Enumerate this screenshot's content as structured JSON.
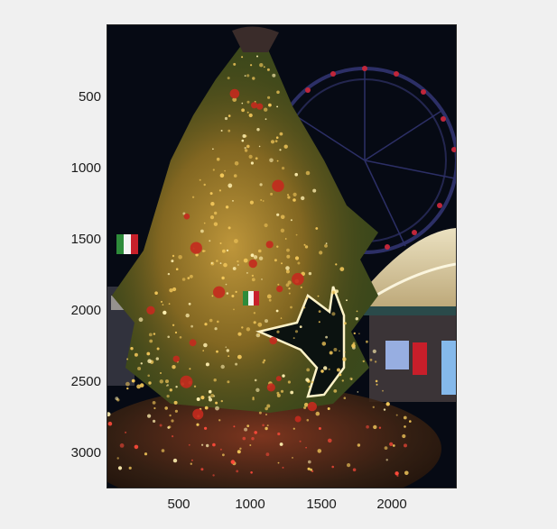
{
  "figure": {
    "image_subject": "christmas-tree-at-night-with-ferris-wheel",
    "y_ticks": [
      "500",
      "1000",
      "1500",
      "2000",
      "2500",
      "3000"
    ],
    "x_ticks": [
      "500",
      "1000",
      "1500",
      "2000"
    ],
    "colors": {
      "background": "#f0f0f0",
      "night_sky": "#060a14",
      "tree_green": "#3b4a1c",
      "lights_gold": "#f2c75a",
      "ornament_red": "#c42a1e",
      "ferris_wheel": "#2c2f66"
    }
  }
}
